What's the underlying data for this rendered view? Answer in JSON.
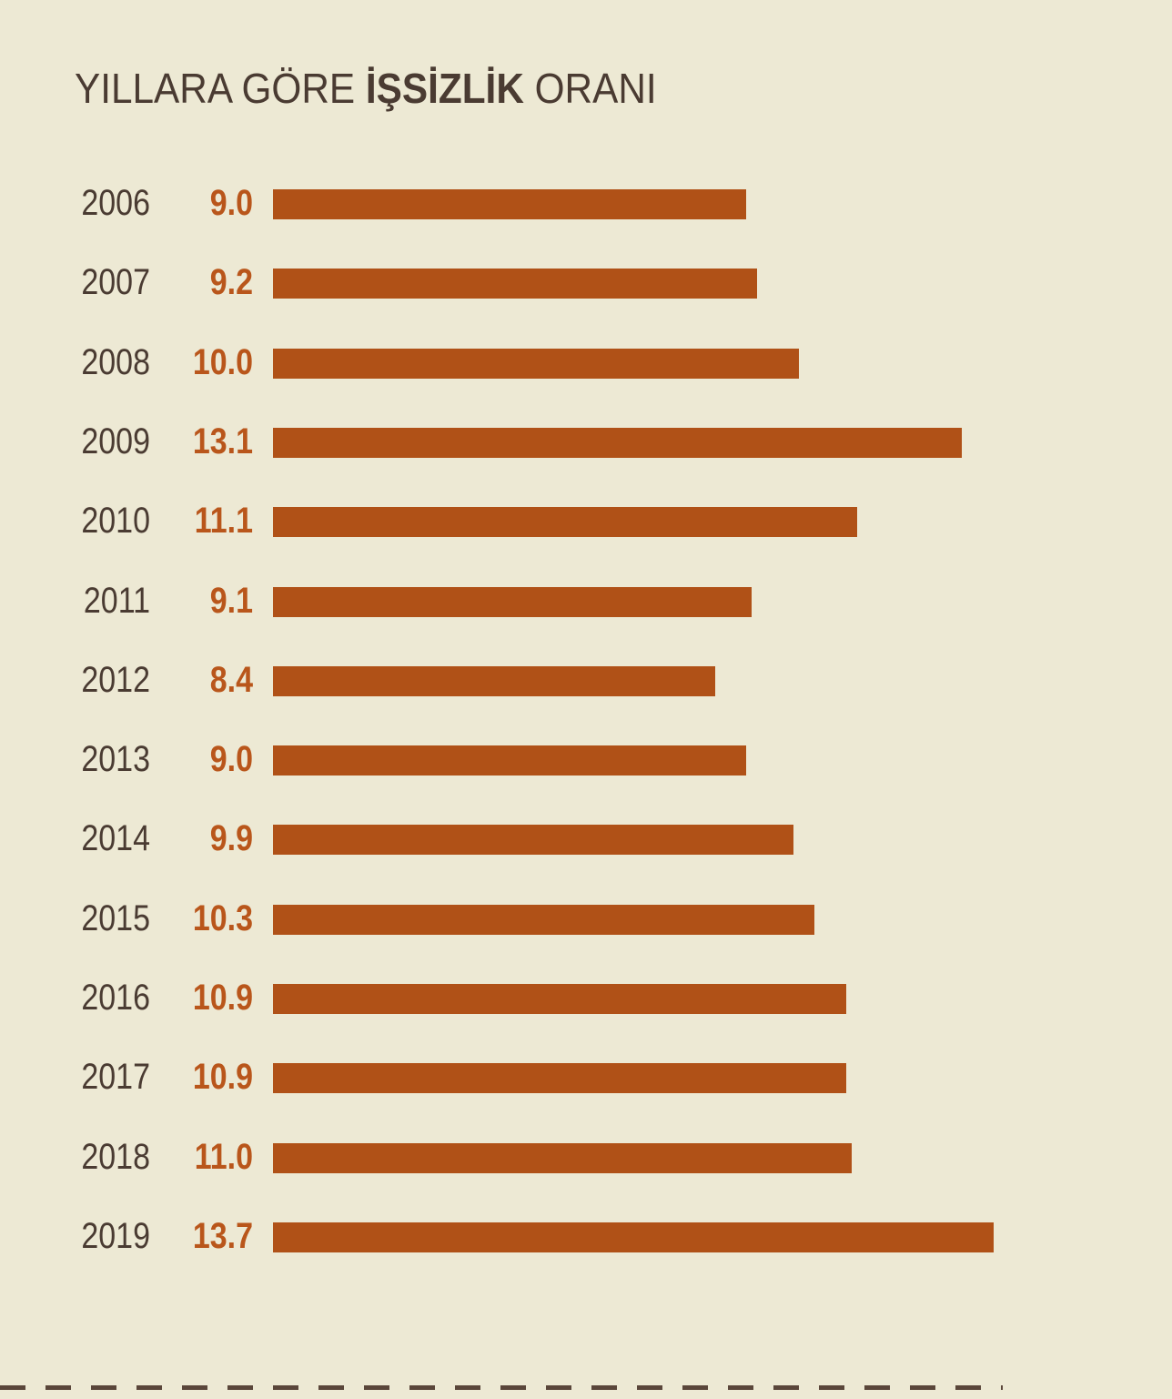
{
  "chart_data": {
    "type": "bar",
    "orientation": "horizontal",
    "title_parts": [
      "YILLARA GÖRE ",
      "İŞSİZLİK",
      " ORANI"
    ],
    "categories": [
      "2006",
      "2007",
      "2008",
      "2009",
      "2010",
      "2011",
      "2012",
      "2013",
      "2014",
      "2015",
      "2016",
      "2017",
      "2018",
      "2019"
    ],
    "values": [
      9.0,
      9.2,
      10.0,
      13.1,
      11.1,
      9.1,
      8.4,
      9.0,
      9.9,
      10.3,
      10.9,
      10.9,
      11.0,
      13.7
    ],
    "value_labels": [
      "9.0",
      "9.2",
      "10.0",
      "13.1",
      "11.1",
      "9.1",
      "8.4",
      "9.0",
      "9.9",
      "10.3",
      "10.9",
      "10.9",
      "11.0",
      "13.7"
    ],
    "xlim": [
      0,
      14
    ],
    "grid": false,
    "legend": "none",
    "colors": {
      "bar": "#b05117",
      "value_text": "#b9561b",
      "text": "#4a3b32",
      "background": "#ede9d4"
    }
  }
}
